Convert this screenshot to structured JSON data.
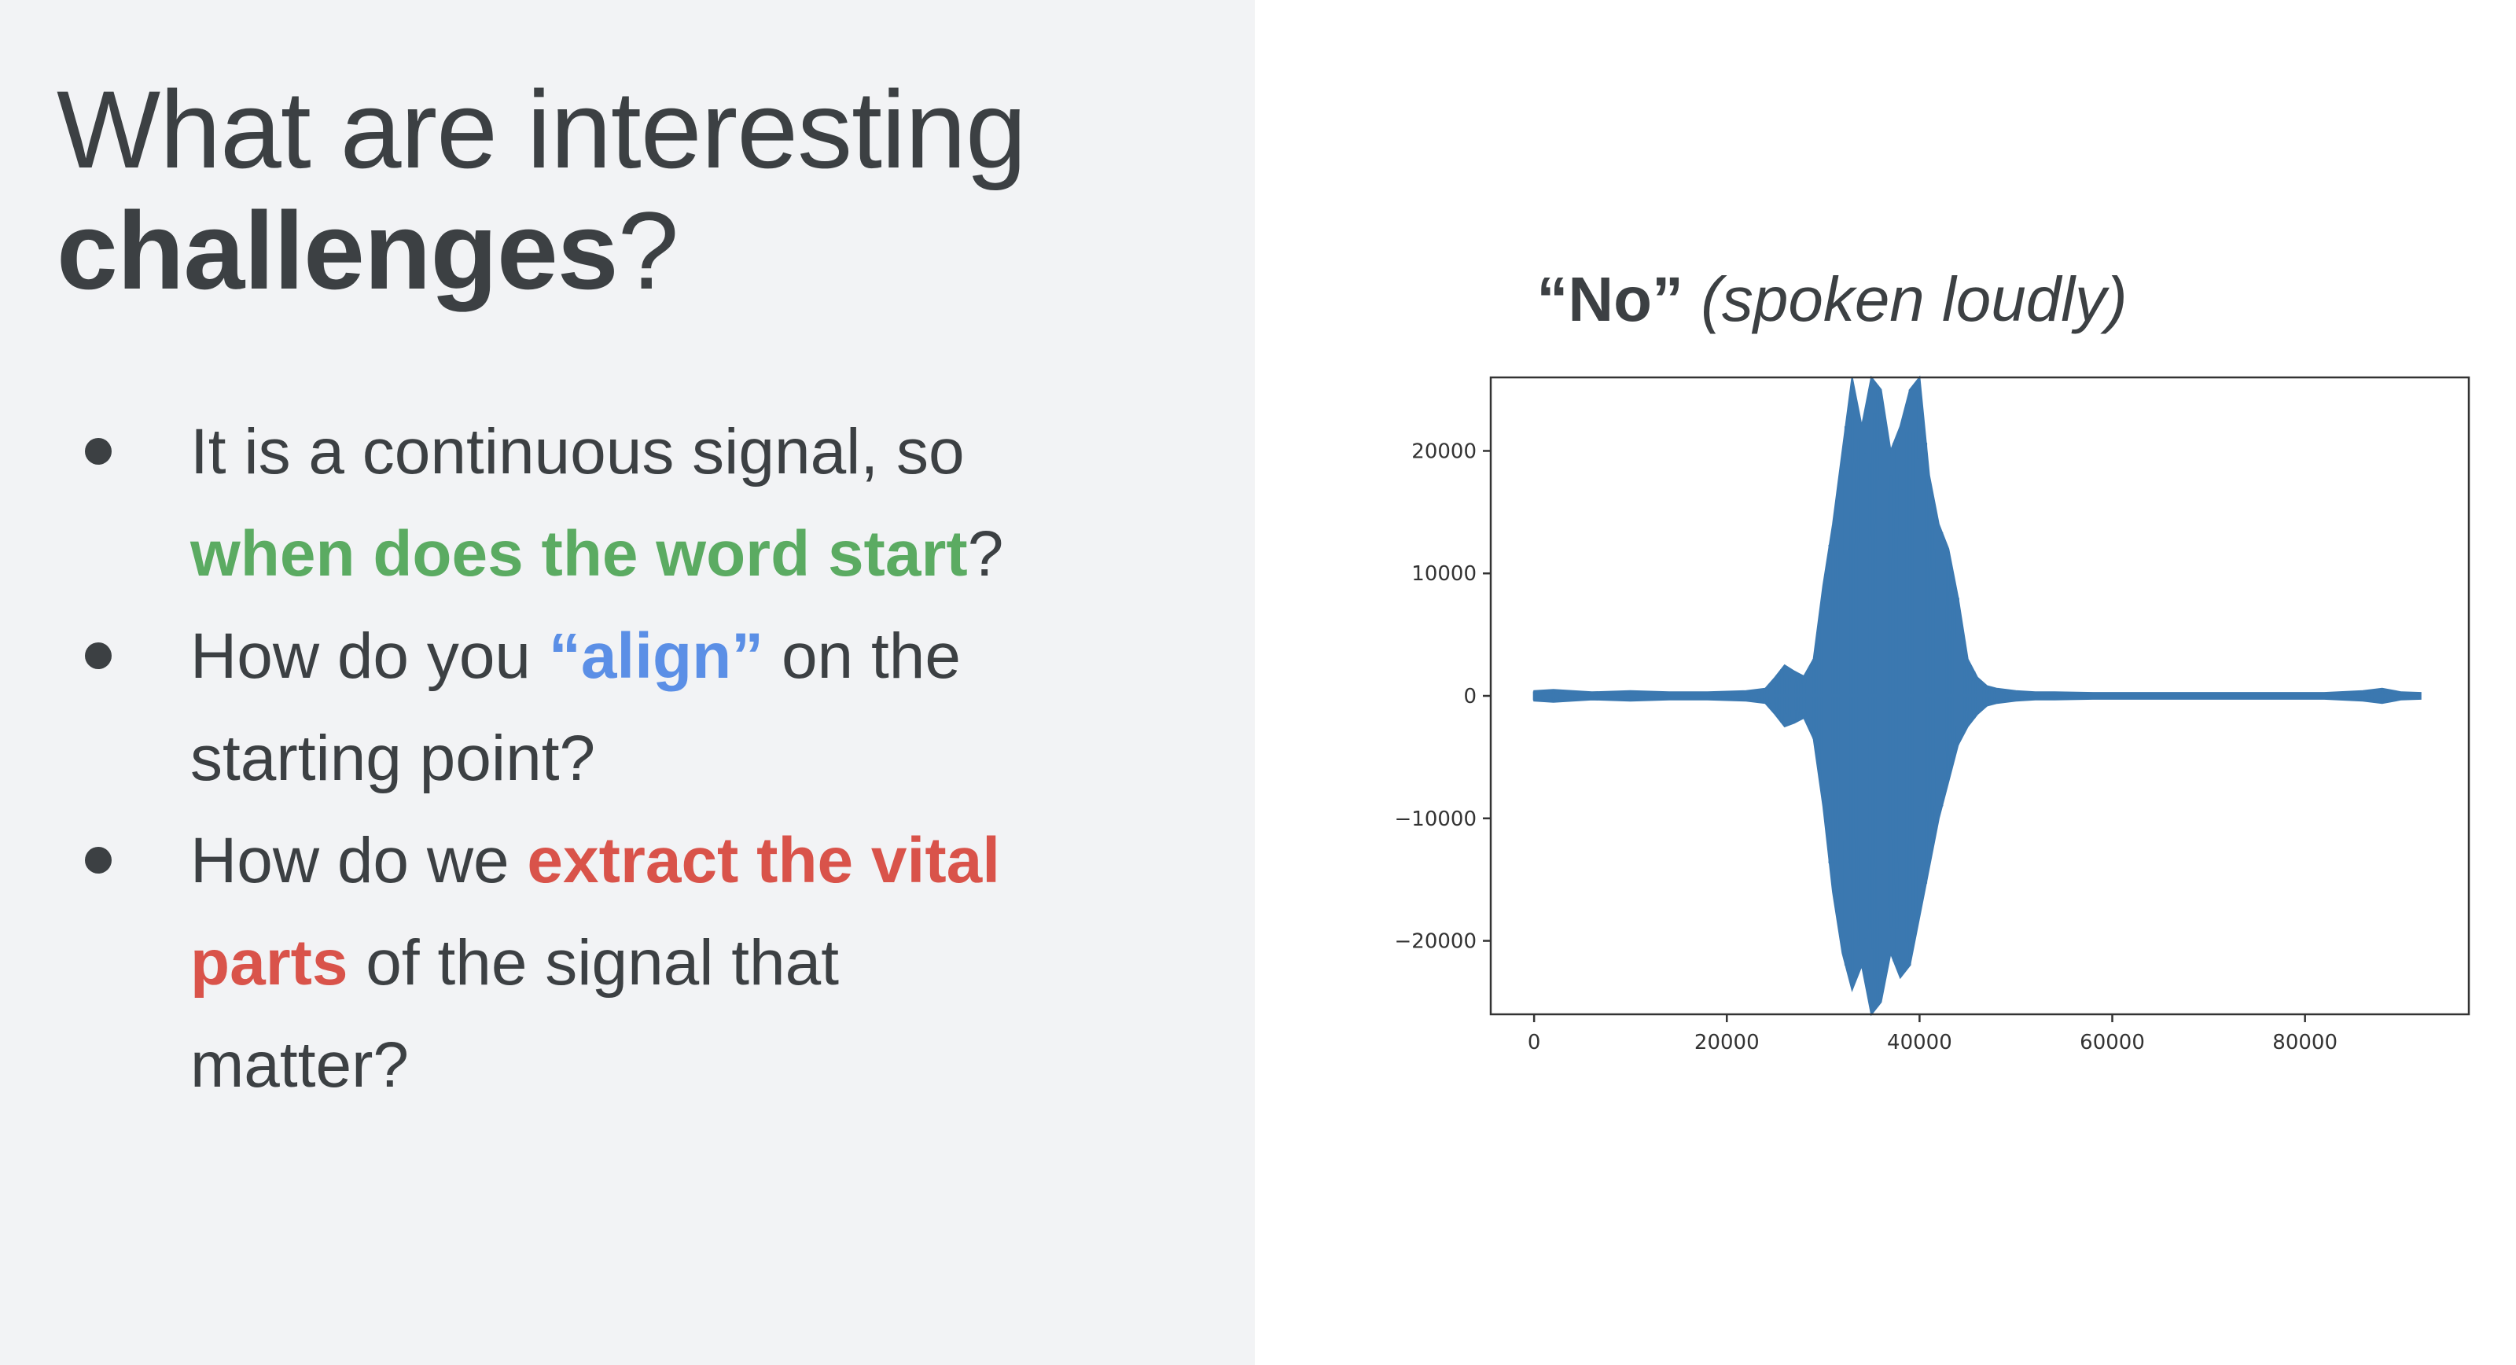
{
  "slide": {
    "title_line1": "What are interesting",
    "title_line2_bold": "challenges",
    "title_line2_rest": "?",
    "bullets": [
      {
        "line1": "It is a continuous signal, so",
        "highlight": "when does the word start",
        "after": "?"
      },
      {
        "before": "How do you ",
        "highlight": "“align”",
        "after1": " on the",
        "line2": "starting point?"
      },
      {
        "before": "How do we ",
        "highlight1": "extract the vital",
        "highlight2": "parts",
        "after": " of the signal that",
        "line3": "matter?"
      }
    ]
  },
  "colors": {
    "panel_bg": "#f2f3f5",
    "text": "#3c4043",
    "green": "#5bab62",
    "blue": "#5b8fe6",
    "red": "#d9534a",
    "waveform": "#3b78b0"
  },
  "chart_data": {
    "type": "line",
    "title_bold": "“No”",
    "title_italic": "(spoken loudly)",
    "xlabel": "",
    "ylabel": "",
    "xlim": [
      -4500,
      97000
    ],
    "ylim": [
      -26000,
      26000
    ],
    "xticks": [
      0,
      20000,
      40000,
      60000,
      80000
    ],
    "yticks": [
      20000,
      10000,
      0,
      -10000,
      -20000
    ],
    "ytick_labels": [
      "20000",
      "10000",
      "0",
      "−10000",
      "−20000"
    ],
    "grid": false,
    "series": [
      {
        "x": [
          0,
          2000,
          6000,
          10000,
          14000,
          18000,
          22000,
          24000,
          25000,
          26000,
          27000,
          28000,
          29000,
          30000,
          31000,
          32000,
          33000,
          34000,
          35000,
          36000,
          37000,
          38000,
          39000,
          40000,
          41000,
          42000,
          43000,
          44000,
          45000,
          46000,
          47000,
          48000,
          50000,
          52000,
          54000,
          58000,
          64000,
          70000,
          76000,
          82000,
          86000,
          88000,
          90000,
          92000
        ],
        "envelope_max": [
          400,
          500,
          300,
          400,
          300,
          300,
          400,
          600,
          1500,
          2500,
          2000,
          1600,
          3000,
          9000,
          14000,
          20000,
          26000,
          22000,
          26000,
          25000,
          20000,
          22000,
          25000,
          26000,
          18000,
          14000,
          12000,
          8000,
          3000,
          1500,
          800,
          600,
          400,
          300,
          300,
          250,
          250,
          250,
          250,
          250,
          400,
          600,
          300,
          250
        ],
        "envelope_min": [
          -400,
          -500,
          -300,
          -400,
          -300,
          -300,
          -400,
          -600,
          -1500,
          -2500,
          -2200,
          -1800,
          -3500,
          -9000,
          -16000,
          -21000,
          -24000,
          -22000,
          -26000,
          -25000,
          -21000,
          -23000,
          -22000,
          -18000,
          -14000,
          -10000,
          -7000,
          -4000,
          -2500,
          -1500,
          -800,
          -600,
          -400,
          -300,
          -300,
          -250,
          -250,
          -250,
          -250,
          -250,
          -400,
          -600,
          -300,
          -250
        ]
      }
    ]
  }
}
